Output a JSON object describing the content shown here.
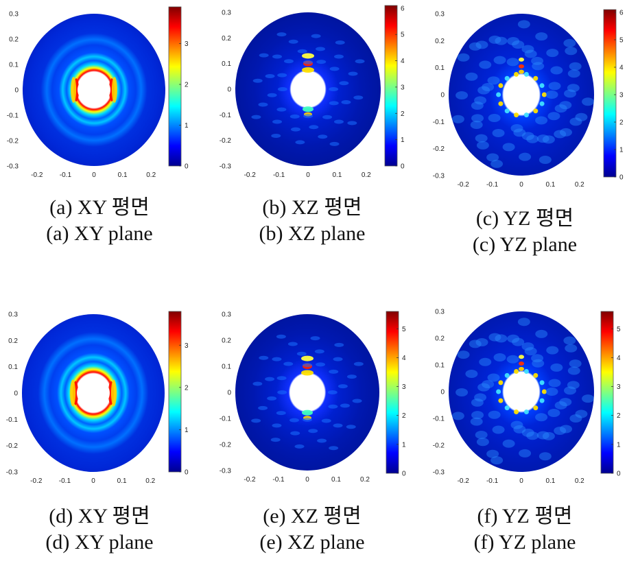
{
  "colors": {
    "cmap": [
      "#00008f",
      "#0000ff",
      "#0080ff",
      "#00ffff",
      "#80ff80",
      "#ffff00",
      "#ff8000",
      "#ff0000",
      "#800000"
    ],
    "background": "#ffffff"
  },
  "chart_data": [
    {
      "type": "heatmap",
      "plane": "XY",
      "pattern": "rings",
      "x_ticks": [
        -0.2,
        -0.1,
        0,
        0.1,
        0.2
      ],
      "y_ticks": [
        0.3,
        0.2,
        0.1,
        0,
        -0.1,
        -0.2,
        -0.3
      ],
      "xlim": [
        -0.25,
        0.25
      ],
      "ylim": [
        -0.3,
        0.3
      ],
      "colorbar_ticks": [
        0,
        1,
        2,
        3
      ],
      "colorbar_max": 3.9,
      "caption_kr": "(a)  XY  평면",
      "caption_en": "(a)  XY  plane"
    },
    {
      "type": "heatmap",
      "plane": "XZ",
      "pattern": "lobes",
      "x_ticks": [
        -0.2,
        -0.1,
        0,
        0.1,
        0.2
      ],
      "y_ticks": [
        0.3,
        0.2,
        0.1,
        0,
        -0.1,
        -0.2,
        -0.3
      ],
      "xlim": [
        -0.25,
        0.25
      ],
      "ylim": [
        -0.3,
        0.3
      ],
      "colorbar_ticks": [
        0,
        1,
        2,
        3,
        4,
        5,
        6
      ],
      "colorbar_max": 6.1,
      "caption_kr": "(b)  XZ  평면",
      "caption_en": "(b)  XZ  plane"
    },
    {
      "type": "heatmap",
      "plane": "YZ",
      "pattern": "speckle",
      "x_ticks": [
        -0.2,
        -0.1,
        0,
        0.1,
        0.2
      ],
      "y_ticks": [
        0.3,
        0.2,
        0.1,
        0,
        -0.1,
        -0.2,
        -0.3
      ],
      "xlim": [
        -0.25,
        0.25
      ],
      "ylim": [
        -0.3,
        0.3
      ],
      "colorbar_ticks": [
        0,
        1,
        2,
        3,
        4,
        5,
        6
      ],
      "colorbar_max": 6.1,
      "caption_kr": "(c)  YZ  평면",
      "caption_en": "(c)  YZ  plane"
    },
    {
      "type": "heatmap",
      "plane": "XY",
      "pattern": "rings",
      "x_ticks": [
        -0.2,
        -0.1,
        0,
        0.1,
        0.2
      ],
      "y_ticks": [
        0.3,
        0.2,
        0.1,
        0,
        -0.1,
        -0.2,
        -0.3
      ],
      "xlim": [
        -0.25,
        0.25
      ],
      "ylim": [
        -0.3,
        0.3
      ],
      "colorbar_ticks": [
        0,
        1,
        2,
        3
      ],
      "colorbar_max": 3.8,
      "caption_kr": "(d)  XY  평면",
      "caption_en": "(d)  XY  plane"
    },
    {
      "type": "heatmap",
      "plane": "XZ",
      "pattern": "lobes",
      "x_ticks": [
        -0.2,
        -0.1,
        0,
        0.1,
        0.2
      ],
      "y_ticks": [
        0.3,
        0.2,
        0.1,
        0,
        -0.1,
        -0.2,
        -0.3
      ],
      "xlim": [
        -0.25,
        0.25
      ],
      "ylim": [
        -0.3,
        0.3
      ],
      "colorbar_ticks": [
        0,
        1,
        2,
        3,
        4,
        5
      ],
      "colorbar_max": 5.6,
      "caption_kr": "(e)  XZ  평면",
      "caption_en": "(e)  XZ  plane"
    },
    {
      "type": "heatmap",
      "plane": "YZ",
      "pattern": "speckle",
      "x_ticks": [
        -0.2,
        -0.1,
        0,
        0.1,
        0.2
      ],
      "y_ticks": [
        0.3,
        0.2,
        0.1,
        0,
        -0.1,
        -0.2,
        -0.3
      ],
      "xlim": [
        -0.25,
        0.25
      ],
      "ylim": [
        -0.3,
        0.3
      ],
      "colorbar_ticks": [
        0,
        1,
        2,
        3,
        4,
        5
      ],
      "colorbar_max": 5.6,
      "caption_kr": "(f)  YZ  평면",
      "caption_en": "(f)  YZ  plane"
    }
  ]
}
